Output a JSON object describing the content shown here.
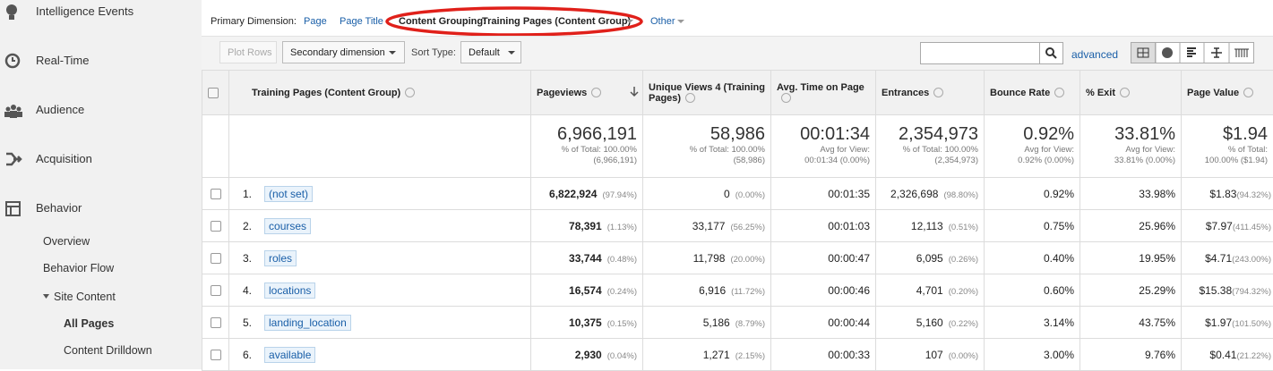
{
  "sidebar": {
    "items": [
      {
        "label": "Intelligence Events"
      },
      {
        "label": "Real-Time"
      },
      {
        "label": "Audience"
      },
      {
        "label": "Acquisition"
      },
      {
        "label": "Behavior"
      },
      {
        "label": "Overview"
      },
      {
        "label": "Behavior Flow"
      },
      {
        "label": "Site Content"
      },
      {
        "label": "All Pages"
      },
      {
        "label": "Content Drilldown"
      }
    ]
  },
  "dimension_bar": {
    "label": "Primary Dimension:",
    "options": [
      "Page",
      "Page Title"
    ],
    "group_label": "Content Grouping:",
    "group_value": "Training Pages (Content Group)",
    "other": "Other"
  },
  "toolbar": {
    "plot_rows": "Plot Rows",
    "secondary_dimension": "Secondary dimension",
    "sort_type_label": "Sort Type:",
    "sort_type": "Default",
    "advanced": "advanced"
  },
  "table": {
    "columns": [
      "Training Pages (Content Group)",
      "Pageviews",
      "Unique Views 4 (Training Pages)",
      "Avg. Time on Page",
      "Entrances",
      "Bounce Rate",
      "% Exit",
      "Page Value"
    ],
    "totals": [
      {
        "value": "6,966,191",
        "note": "% of Total: 100.00%",
        "detail": "(6,966,191)"
      },
      {
        "value": "58,986",
        "note": "% of Total: 100.00%",
        "detail": "(58,986)"
      },
      {
        "value": "00:01:34",
        "note": "Avg for View:",
        "detail": "00:01:34 (0.00%)"
      },
      {
        "value": "2,354,973",
        "note": "% of Total: 100.00%",
        "detail": "(2,354,973)"
      },
      {
        "value": "0.92%",
        "note": "Avg for View:",
        "detail": "0.92% (0.00%)"
      },
      {
        "value": "33.81%",
        "note": "Avg for View:",
        "detail": "33.81% (0.00%)"
      },
      {
        "value": "$1.94",
        "note": "% of Total:",
        "detail": "100.00% ($1.94)"
      }
    ],
    "rows": [
      {
        "index": "1.",
        "name": "(not set)",
        "cells": [
          [
            "6,822,924",
            "(97.94%)"
          ],
          [
            "0",
            "(0.00%)"
          ],
          [
            "00:01:35"
          ],
          [
            "2,326,698",
            "(98.80%)"
          ],
          [
            "0.92%"
          ],
          [
            "33.98%"
          ],
          [
            "$1.83",
            "(94.32%)"
          ]
        ]
      },
      {
        "index": "2.",
        "name": "courses",
        "cells": [
          [
            "78,391",
            "(1.13%)"
          ],
          [
            "33,177",
            "(56.25%)"
          ],
          [
            "00:01:03"
          ],
          [
            "12,113",
            "(0.51%)"
          ],
          [
            "0.75%"
          ],
          [
            "25.96%"
          ],
          [
            "$7.97",
            "(411.45%)"
          ]
        ]
      },
      {
        "index": "3.",
        "name": "roles",
        "cells": [
          [
            "33,744",
            "(0.48%)"
          ],
          [
            "11,798",
            "(20.00%)"
          ],
          [
            "00:00:47"
          ],
          [
            "6,095",
            "(0.26%)"
          ],
          [
            "0.40%"
          ],
          [
            "19.95%"
          ],
          [
            "$4.71",
            "(243.00%)"
          ]
        ]
      },
      {
        "index": "4.",
        "name": "locations",
        "cells": [
          [
            "16,574",
            "(0.24%)"
          ],
          [
            "6,916",
            "(11.72%)"
          ],
          [
            "00:00:46"
          ],
          [
            "4,701",
            "(0.20%)"
          ],
          [
            "0.60%"
          ],
          [
            "25.29%"
          ],
          [
            "$15.38",
            "(794.32%)"
          ]
        ]
      },
      {
        "index": "5.",
        "name": "landing_location",
        "cells": [
          [
            "10,375",
            "(0.15%)"
          ],
          [
            "5,186",
            "(8.79%)"
          ],
          [
            "00:00:44"
          ],
          [
            "5,160",
            "(0.22%)"
          ],
          [
            "3.14%"
          ],
          [
            "43.75%"
          ],
          [
            "$1.97",
            "(101.50%)"
          ]
        ]
      },
      {
        "index": "6.",
        "name": "available",
        "cells": [
          [
            "2,930",
            "(0.04%)"
          ],
          [
            "1,271",
            "(2.15%)"
          ],
          [
            "00:00:33"
          ],
          [
            "107",
            "(0.00%)"
          ],
          [
            "3.00%"
          ],
          [
            "9.76%"
          ],
          [
            "$0.41",
            "(21.22%)"
          ]
        ]
      }
    ]
  }
}
